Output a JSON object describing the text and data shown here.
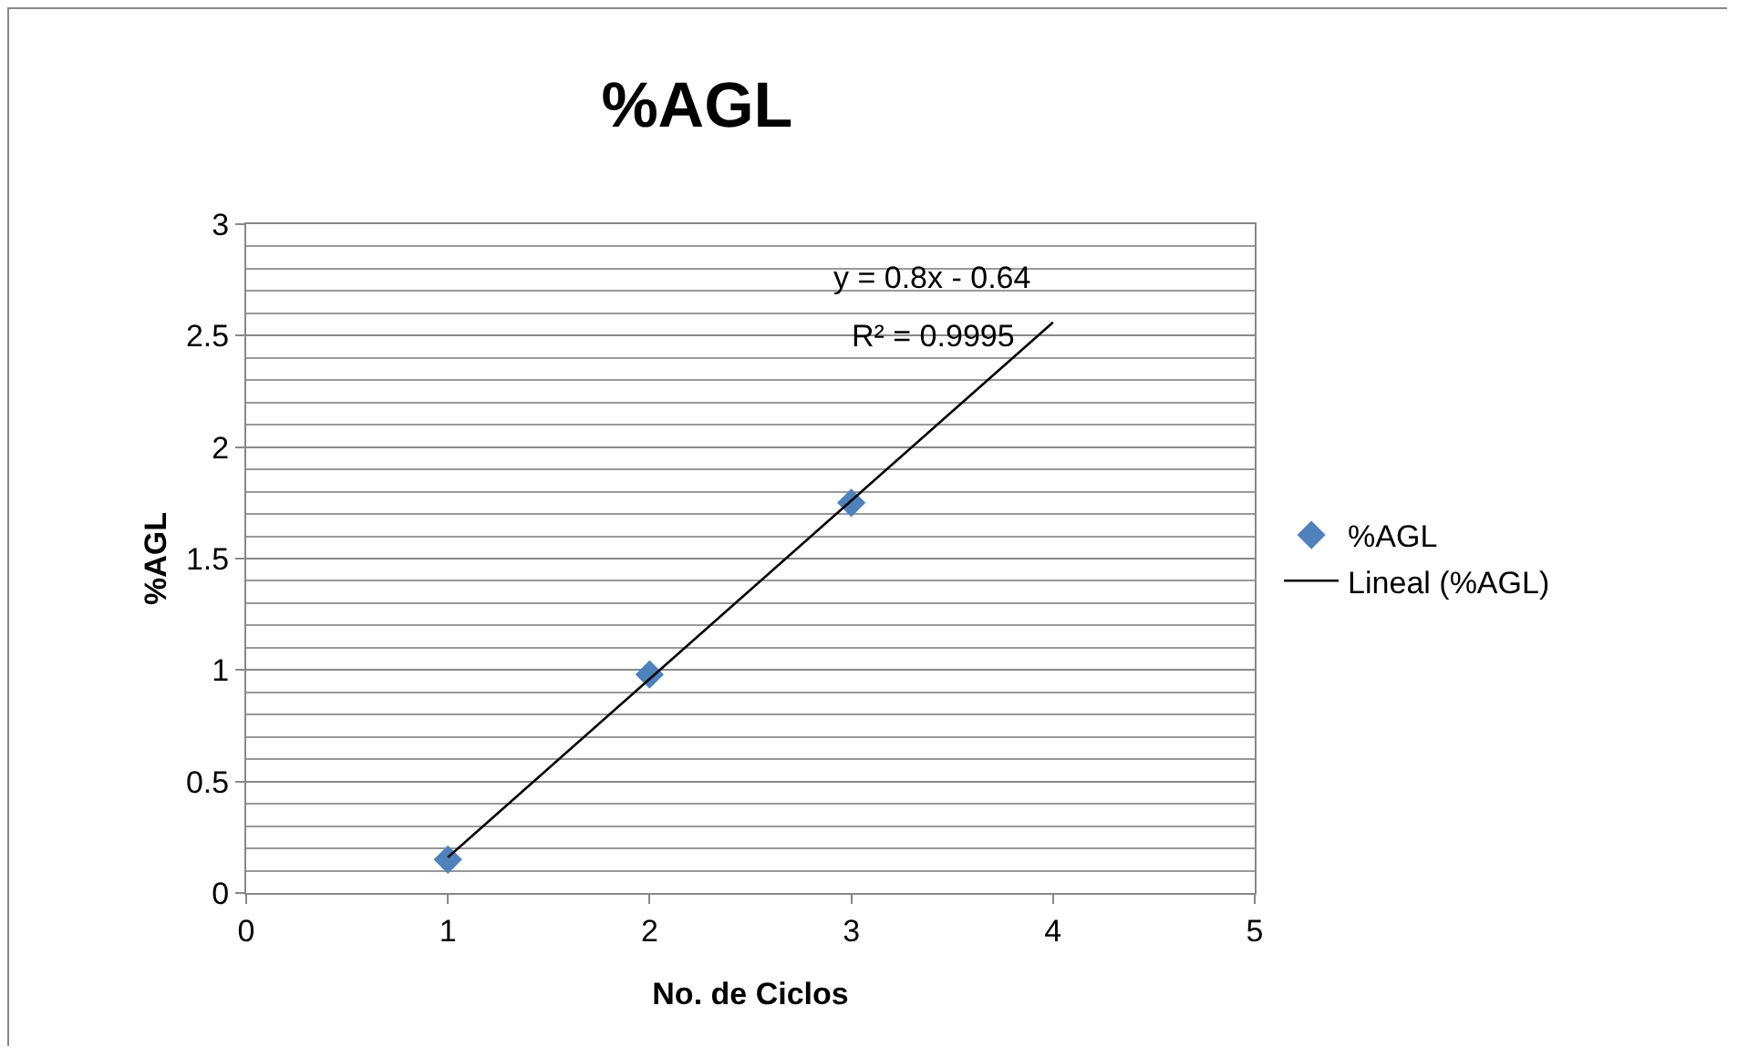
{
  "chart_data": {
    "type": "scatter",
    "title": "%AGL",
    "xlabel": "No. de Ciclos",
    "ylabel": "%AGL",
    "x": [
      1,
      2,
      3
    ],
    "series": [
      {
        "name": "%AGL",
        "color": "#4f81bd",
        "values": [
          0.15,
          0.98,
          1.75
        ],
        "marker": "diamond"
      },
      {
        "name": "Lineal (%AGL)",
        "type": "line",
        "color": "#000000",
        "x": [
          1,
          4
        ],
        "values": [
          0.16,
          2.56
        ]
      }
    ],
    "annotations": [
      "y = 0.8x - 0.64",
      "R² = 0.9995"
    ],
    "xlim": [
      0,
      5
    ],
    "xticks": [
      0,
      1,
      2,
      3,
      4,
      5
    ],
    "ylim": [
      0,
      3
    ],
    "yticks": [
      0,
      0.5,
      1,
      1.5,
      2,
      2.5,
      3
    ],
    "grid": "y",
    "legend": "right"
  }
}
